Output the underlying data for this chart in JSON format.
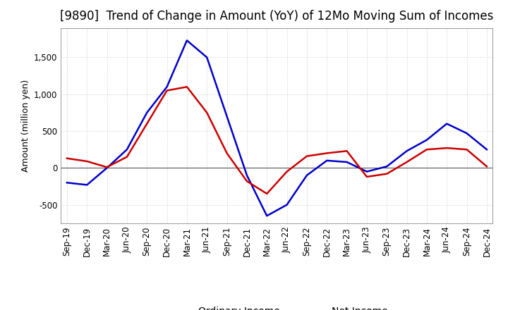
{
  "title": "[9890]  Trend of Change in Amount (YoY) of 12Mo Moving Sum of Incomes",
  "ylabel": "Amount (million yen)",
  "ylim": [
    -750,
    1900
  ],
  "yticks": [
    -500,
    0,
    500,
    1000,
    1500
  ],
  "background_color": "#ffffff",
  "grid_color": "#aaaaaa",
  "x_labels": [
    "Sep-19",
    "Dec-19",
    "Mar-20",
    "Jun-20",
    "Sep-20",
    "Dec-20",
    "Mar-21",
    "Jun-21",
    "Sep-21",
    "Dec-21",
    "Mar-22",
    "Jun-22",
    "Sep-22",
    "Dec-22",
    "Mar-23",
    "Jun-23",
    "Sep-23",
    "Dec-23",
    "Mar-24",
    "Jun-24",
    "Sep-24",
    "Dec-24"
  ],
  "ordinary_income": [
    -200,
    -230,
    0,
    250,
    750,
    1100,
    1730,
    1500,
    700,
    -100,
    -650,
    -500,
    -100,
    100,
    80,
    -50,
    20,
    230,
    380,
    600,
    470,
    250
  ],
  "net_income": [
    130,
    90,
    10,
    150,
    600,
    1050,
    1100,
    750,
    200,
    -180,
    -350,
    -50,
    160,
    200,
    230,
    -120,
    -80,
    80,
    250,
    270,
    250,
    20
  ],
  "ordinary_color": "#0000cc",
  "net_color": "#cc0000",
  "line_width": 1.8,
  "title_fontsize": 12,
  "legend_fontsize": 10,
  "tick_fontsize": 8.5
}
